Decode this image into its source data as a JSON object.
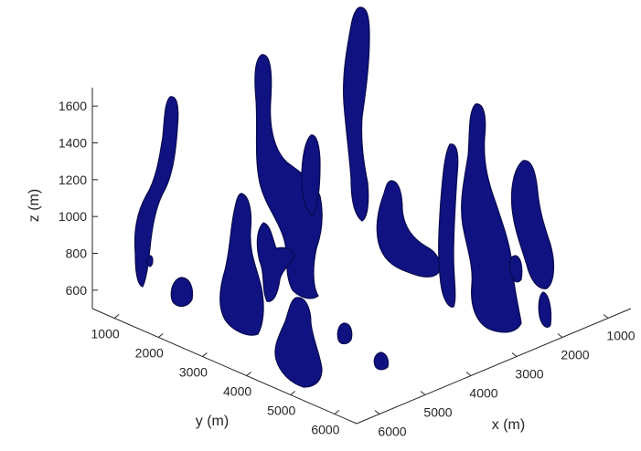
{
  "chart_data": {
    "type": "scatter",
    "view": "3d-isosurface",
    "series_color": "#0f1280",
    "zlabel": "z (m)",
    "ylabel": "y (m)",
    "xlabel": "x (m)",
    "z_ticks": [
      "600",
      "800",
      "1000",
      "1200",
      "1400",
      "1600"
    ],
    "y_ticks": [
      "1000",
      "2000",
      "3000",
      "4000",
      "5000",
      "6000"
    ],
    "x_ticks": [
      "1000",
      "2000",
      "3000",
      "4000",
      "5000",
      "6000"
    ],
    "zlim": [
      500,
      1700
    ],
    "ylim": [
      500,
      6500
    ],
    "xlim": [
      500,
      6500
    ],
    "grid": false
  }
}
